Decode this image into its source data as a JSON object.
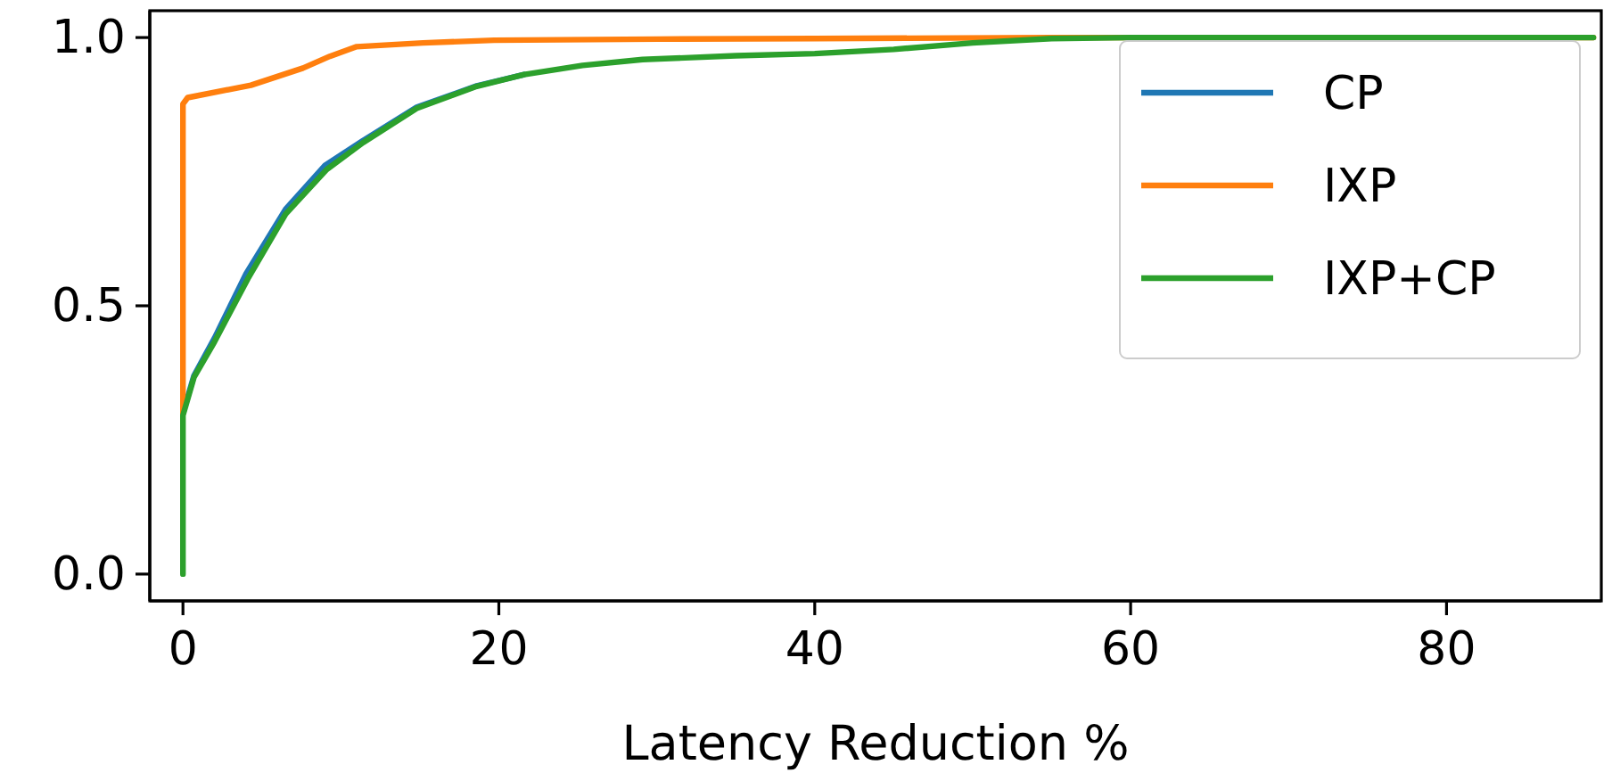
{
  "chart_data": {
    "type": "line",
    "xlabel": "Latency Reduction %",
    "xlim": [
      -2.1,
      89.8
    ],
    "ylim": [
      -0.05,
      1.05
    ],
    "xticks": [
      0,
      20,
      40,
      60,
      80
    ],
    "yticks": [
      {
        "value": 0,
        "label": "0.0"
      },
      {
        "value": 0.5,
        "label": "0.5"
      },
      {
        "value": 1,
        "label": "1.0"
      }
    ],
    "legend": "top right",
    "grid": false,
    "series": [
      {
        "name": "CP",
        "color": "#1f77b4",
        "x": [
          0,
          0.7,
          2,
          4,
          6.5,
          9,
          11.4,
          14.8,
          18.6,
          21.6
        ],
        "values": [
          0.3,
          0.37,
          0.44,
          0.56,
          0.68,
          0.762,
          0.808,
          0.87,
          0.91,
          0.931
        ]
      },
      {
        "name": "IXP",
        "color": "#ff7f0e",
        "x": [
          0,
          0,
          0.3,
          4.3,
          7.6,
          9.3,
          11,
          15.2,
          19.7,
          30,
          40,
          55,
          70,
          89.3
        ],
        "values": [
          0.3,
          0.876,
          0.888,
          0.911,
          0.943,
          0.965,
          0.983,
          0.99,
          0.995,
          0.997,
          0.998,
          1,
          1,
          1
        ]
      },
      {
        "name": "IXP+CP",
        "color": "#2ca02c",
        "x": [
          0,
          0,
          0.7,
          2,
          4.1,
          6.5,
          9.1,
          11.4,
          14.8,
          18.6,
          21.6,
          25.3,
          29.1,
          35,
          40,
          45,
          50,
          55,
          60,
          70,
          80,
          89.3
        ],
        "values": [
          0,
          0.296,
          0.367,
          0.433,
          0.55,
          0.671,
          0.754,
          0.804,
          0.868,
          0.909,
          0.931,
          0.948,
          0.959,
          0.966,
          0.97,
          0.978,
          0.99,
          0.998,
          1,
          1,
          1,
          1
        ]
      }
    ]
  }
}
